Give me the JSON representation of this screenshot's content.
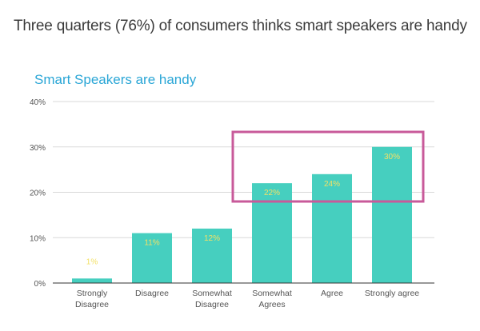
{
  "page": {
    "title": "Three quarters (76%) of consumers thinks smart speakers are handy"
  },
  "chart_data": {
    "type": "bar",
    "title": "Smart Speakers are handy",
    "xlabel": "",
    "ylabel": "",
    "categories": [
      [
        "Strongly",
        "Disagree"
      ],
      [
        "Disagree"
      ],
      [
        "Somewhat",
        "Disagree"
      ],
      [
        "Somewhat",
        "Agrees"
      ],
      [
        "Agree"
      ],
      [
        "Strongly agree"
      ]
    ],
    "values": [
      1,
      11,
      12,
      22,
      24,
      30
    ],
    "data_labels": [
      "1%",
      "11%",
      "12%",
      "22%",
      "24%",
      "30%"
    ],
    "ylim": [
      0,
      40
    ],
    "yticks": [
      0,
      10,
      20,
      30,
      40
    ],
    "ytick_labels": [
      "0%",
      "10%",
      "20%",
      "30%",
      "40%"
    ],
    "grid": true,
    "legend": "none",
    "highlight": {
      "categories": [
        "Somewhat Agrees",
        "Agree",
        "Strongly agree"
      ],
      "color": "#c85a9a"
    },
    "colors": {
      "bar": "#46cfbf",
      "data_label": "#f2e066",
      "title": "#2aa6d6",
      "grid": "#d9d9d9",
      "axis": "#333333",
      "tick_label": "#555555"
    }
  }
}
